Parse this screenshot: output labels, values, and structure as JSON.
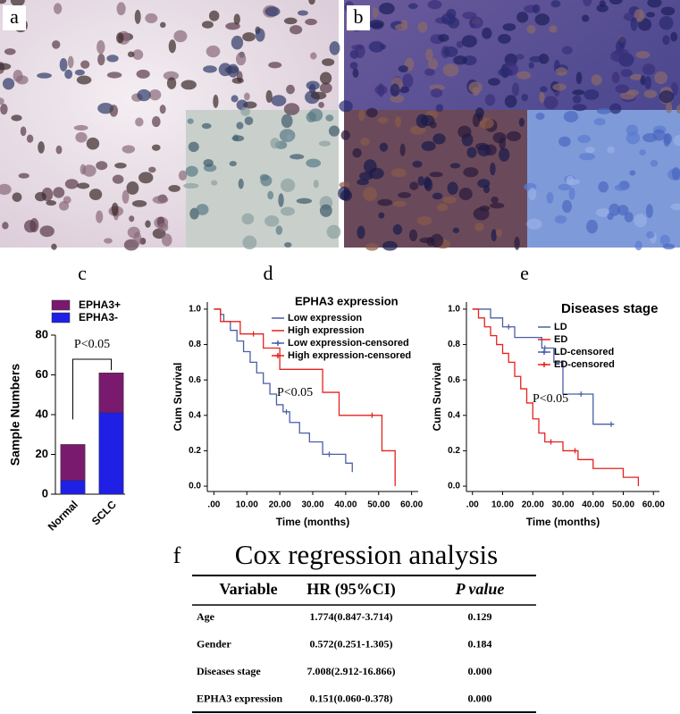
{
  "panel_labels": [
    "a",
    "b",
    "c",
    "d",
    "e",
    "f"
  ],
  "chart_data": [
    {
      "type": "bar",
      "stacked": true,
      "categories": [
        "Normal",
        "SCLC"
      ],
      "series": [
        {
          "name": "EPHA3-",
          "color": "#1f1fe6",
          "values": [
            7,
            41
          ]
        },
        {
          "name": "EPHA3+",
          "color": "#7a1a6e",
          "values": [
            18,
            20
          ]
        }
      ],
      "ylim": [
        0,
        80
      ],
      "yticks": [
        0,
        20,
        40,
        60,
        80
      ],
      "ylabel": "Sample Numbers",
      "annotation": "P<0.05"
    },
    {
      "type": "line",
      "legend_title": "EPHA3 expression",
      "series": [
        {
          "name": "Low expression",
          "color": "#4a5fa8",
          "x": [
            0,
            2,
            2,
            3,
            3,
            5,
            5,
            7,
            7,
            9,
            9,
            11,
            11,
            13,
            13,
            15,
            15,
            17,
            17,
            19,
            19,
            21,
            21,
            23,
            23,
            26,
            26,
            29,
            29,
            33,
            33,
            40,
            40,
            42,
            42
          ],
          "values": [
            1,
            1,
            0.97,
            0.97,
            0.93,
            0.93,
            0.88,
            0.88,
            0.82,
            0.82,
            0.76,
            0.76,
            0.7,
            0.7,
            0.64,
            0.64,
            0.58,
            0.58,
            0.52,
            0.52,
            0.46,
            0.46,
            0.42,
            0.42,
            0.36,
            0.36,
            0.3,
            0.3,
            0.25,
            0.25,
            0.18,
            0.18,
            0.13,
            0.13,
            0.08
          ]
        },
        {
          "name": "High expression",
          "color": "#e8201c",
          "x": [
            0,
            2,
            2,
            8,
            8,
            15,
            15,
            20,
            20,
            33,
            33,
            38,
            38,
            51,
            51,
            55,
            55
          ],
          "values": [
            1,
            1,
            0.93,
            0.93,
            0.86,
            0.86,
            0.78,
            0.78,
            0.66,
            0.66,
            0.53,
            0.53,
            0.4,
            0.4,
            0.2,
            0.2,
            0
          ]
        },
        {
          "name": "Low expression-censored",
          "color": "#4a5fa8",
          "marker": "+",
          "x": [
            22,
            35
          ],
          "values": [
            0.42,
            0.18
          ]
        },
        {
          "name": "High expression-censored",
          "color": "#e8201c",
          "marker": "+",
          "x": [
            12,
            48
          ],
          "values": [
            0.86,
            0.4
          ]
        }
      ],
      "xlim": [
        -2,
        62
      ],
      "xticks": [
        {
          "value": 0,
          "label": ".00"
        },
        {
          "value": 10,
          "label": "10.00"
        },
        {
          "value": 20,
          "label": "20.00"
        },
        {
          "value": 30,
          "label": "30.00"
        },
        {
          "value": 40,
          "label": "40.00"
        },
        {
          "value": 50,
          "label": "50.00"
        },
        {
          "value": 60,
          "label": "60.00"
        }
      ],
      "ylim": [
        -0.03,
        1.04
      ],
      "yticks": [
        {
          "value": 0,
          "label": "0.0"
        },
        0.2,
        0.4,
        0.6,
        0.8,
        {
          "value": 1,
          "label": "1.0"
        }
      ],
      "xlabel": "Time (months)",
      "ylabel": "Cum Survival",
      "annotation": "P<0.05"
    },
    {
      "type": "line",
      "legend_title": "Diseases stage",
      "series": [
        {
          "name": "LD",
          "color": "#4a5fa8",
          "x": [
            0,
            6,
            6,
            10,
            10,
            14,
            14,
            23,
            23,
            27,
            27,
            30,
            30,
            40,
            40,
            47
          ],
          "values": [
            1,
            1,
            0.95,
            0.95,
            0.9,
            0.9,
            0.84,
            0.84,
            0.78,
            0.78,
            0.7,
            0.7,
            0.52,
            0.52,
            0.35,
            0.35
          ]
        },
        {
          "name": "ED",
          "color": "#e8201c",
          "x": [
            0,
            2,
            2,
            4,
            4,
            6,
            6,
            8,
            8,
            10,
            10,
            12,
            12,
            14,
            14,
            16,
            16,
            18,
            18,
            20,
            20,
            22,
            22,
            24,
            24,
            30,
            30,
            35,
            35,
            40,
            40,
            50,
            50,
            55,
            55
          ],
          "values": [
            1,
            1,
            0.95,
            0.95,
            0.9,
            0.9,
            0.85,
            0.85,
            0.8,
            0.8,
            0.75,
            0.75,
            0.7,
            0.7,
            0.62,
            0.62,
            0.55,
            0.55,
            0.47,
            0.47,
            0.38,
            0.38,
            0.3,
            0.3,
            0.25,
            0.25,
            0.2,
            0.2,
            0.15,
            0.15,
            0.1,
            0.1,
            0.05,
            0.05,
            0
          ]
        },
        {
          "name": "LD-censored",
          "color": "#4a5fa8",
          "marker": "+",
          "x": [
            12,
            24,
            36,
            46
          ],
          "values": [
            0.9,
            0.78,
            0.52,
            0.35
          ]
        },
        {
          "name": "ED-censored",
          "color": "#e8201c",
          "marker": "+",
          "x": [
            26,
            34
          ],
          "values": [
            0.25,
            0.2
          ]
        }
      ],
      "xlim": [
        -2,
        62
      ],
      "xticks": [
        {
          "value": 0,
          "label": ".00"
        },
        {
          "value": 10,
          "label": "10.00"
        },
        {
          "value": 20,
          "label": "20.00"
        },
        {
          "value": 30,
          "label": "30.00"
        },
        {
          "value": 40,
          "label": "40.00"
        },
        {
          "value": 50,
          "label": "50.00"
        },
        {
          "value": 60,
          "label": "60.00"
        }
      ],
      "ylim": [
        -0.03,
        1.04
      ],
      "yticks": [
        {
          "value": 0,
          "label": "0.0"
        },
        0.2,
        0.4,
        0.6,
        0.8,
        {
          "value": 1,
          "label": "1.0"
        }
      ],
      "xlabel": "Time (months)",
      "ylabel": "Cum Survival",
      "annotation": "P<0.05"
    }
  ],
  "table": {
    "title": "Cox regression analysis",
    "header": [
      "Variable",
      "HR (95%CI)",
      "P value"
    ],
    "rows": [
      [
        "Age",
        "1.774(0.847-3.714)",
        "0.129"
      ],
      [
        "Gender",
        "0.572(0.251-1.305)",
        "0.184"
      ],
      [
        "Diseases stage",
        "7.008(2.912-16.866)",
        "0.000"
      ],
      [
        "EPHA3 expression",
        "0.151(0.060-0.378)",
        "0.000"
      ]
    ]
  }
}
